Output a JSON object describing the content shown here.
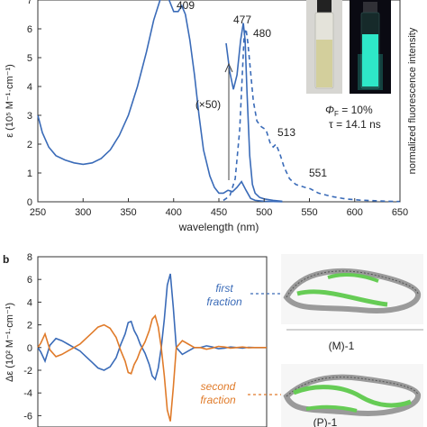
{
  "panel_a": {
    "letter": "",
    "peaks": [
      "409",
      "477",
      "480",
      "513",
      "551"
    ],
    "multiplier": "(×50)",
    "quantum_yield_sym": "Φ",
    "quantum_yield_sub": "F",
    "quantum_yield_val": " = 10%",
    "lifetime": "τ = 14.1 ns"
  },
  "panel_b": {
    "letter": "b",
    "first_fraction": [
      "first",
      "fraction"
    ],
    "second_fraction": [
      "second",
      "fraction"
    ],
    "enantiomer_M": "(M)-1",
    "enantiomer_P": "(P)-1"
  },
  "colors": {
    "blue": "#3a6bb8",
    "orange": "#e07b2a",
    "molecule_green": "#66cc55",
    "molecule_grey": "#9a9a9a"
  },
  "chart_data": [
    {
      "type": "line",
      "xlabel": "wavelength (nm)",
      "ylabel": "ε (10⁵ M⁻¹·cm⁻¹)",
      "y2label": "normalized fluorescence intensity",
      "xlim": [
        250,
        650
      ],
      "ylim": [
        0,
        7
      ],
      "xticks": [
        250,
        300,
        350,
        400,
        450,
        500,
        550,
        600,
        650
      ],
      "yticks": [
        0,
        1,
        2,
        3,
        4,
        5,
        6,
        7
      ],
      "series": [
        {
          "style": "solid",
          "color": "#3a6bb8",
          "x": [
            250,
            255,
            262,
            270,
            280,
            290,
            300,
            310,
            320,
            330,
            340,
            350,
            360,
            370,
            378,
            385,
            390,
            395,
            400,
            405,
            409,
            413,
            418,
            423,
            428,
            433,
            440,
            445,
            450,
            455,
            460,
            465,
            470,
            475,
            480,
            485,
            490,
            500,
            510,
            520
          ],
          "y": [
            3.0,
            2.4,
            1.9,
            1.6,
            1.45,
            1.35,
            1.3,
            1.35,
            1.5,
            1.8,
            2.3,
            3.0,
            4.0,
            5.2,
            6.3,
            7.0,
            7.2,
            7.0,
            6.6,
            6.6,
            6.8,
            6.5,
            5.6,
            4.4,
            3.0,
            1.8,
            0.9,
            0.5,
            0.3,
            0.3,
            0.4,
            0.35,
            0.5,
            0.7,
            0.4,
            0.12,
            0.05,
            0.02,
            0.01,
            0.0
          ]
        },
        {
          "style": "solid",
          "color": "#3a6bb8",
          "note_label": "(×50)",
          "x": [
            458,
            462,
            466,
            470,
            474,
            477,
            479,
            481,
            484,
            487,
            490,
            495,
            500,
            510,
            520
          ],
          "y": [
            5.5,
            4.5,
            3.9,
            4.4,
            5.6,
            6.2,
            5.6,
            3.8,
            1.6,
            0.6,
            0.3,
            0.15,
            0.1,
            0.05,
            0.02
          ]
        },
        {
          "style": "dashed",
          "color": "#3a6bb8",
          "x": [
            455,
            462,
            468,
            473,
            476,
            478,
            480,
            482,
            485,
            488,
            492,
            497,
            502,
            507,
            510,
            513,
            517,
            522,
            528,
            535,
            545,
            551,
            560,
            575,
            590,
            605,
            620,
            635,
            650
          ],
          "y": [
            0.05,
            0.2,
            0.8,
            2.5,
            4.5,
            5.8,
            6.0,
            5.5,
            4.5,
            3.5,
            2.8,
            2.6,
            2.5,
            2.0,
            1.9,
            2.0,
            1.7,
            1.2,
            0.8,
            0.6,
            0.5,
            0.45,
            0.3,
            0.18,
            0.1,
            0.06,
            0.04,
            0.02,
            0.01
          ]
        }
      ]
    },
    {
      "type": "line",
      "ylabel": "Δε (10² M⁻¹·cm⁻¹)",
      "ylim": [
        -7,
        8
      ],
      "yticks": [
        8,
        6,
        4,
        2,
        0,
        -2,
        -4,
        -6
      ],
      "series": [
        {
          "name": "first fraction",
          "color": "#3a6bb8",
          "x": [
            250,
            255,
            262,
            270,
            280,
            290,
            300,
            310,
            320,
            330,
            340,
            350,
            360,
            370,
            380,
            388,
            395,
            400,
            405,
            410,
            415,
            420,
            428,
            435,
            440,
            445,
            450,
            455,
            460,
            465,
            470,
            475,
            480,
            490,
            500,
            510,
            520,
            530,
            540,
            550,
            560,
            570,
            580,
            590,
            600,
            610,
            620,
            630
          ],
          "y": [
            0,
            -0.4,
            -1.2,
            0.2,
            0.8,
            0.6,
            0.3,
            0,
            -0.3,
            -0.8,
            -1.3,
            -1.8,
            -2.0,
            -1.7,
            -0.9,
            0.3,
            1.2,
            2.2,
            2.3,
            1.5,
            1.0,
            0.3,
            -0.5,
            -1.5,
            -2.5,
            -2.8,
            -1.8,
            0,
            2.5,
            5.5,
            6.5,
            3.5,
            0,
            -0.6,
            -0.3,
            0,
            0,
            0.15,
            0.05,
            -0.1,
            -0.05,
            0.05,
            0,
            -0.05,
            0.02,
            0,
            0,
            0
          ]
        },
        {
          "name": "second fraction",
          "color": "#e07b2a",
          "x": [
            250,
            255,
            262,
            270,
            280,
            290,
            300,
            310,
            320,
            330,
            340,
            350,
            360,
            370,
            380,
            388,
            395,
            400,
            405,
            410,
            415,
            420,
            428,
            435,
            440,
            445,
            450,
            455,
            460,
            465,
            470,
            475,
            480,
            490,
            500,
            510,
            520,
            530,
            540,
            550,
            560,
            570,
            580,
            590,
            600,
            610,
            620,
            630
          ],
          "y": [
            0,
            0.4,
            1.2,
            -0.2,
            -0.8,
            -0.6,
            -0.3,
            0,
            0.3,
            0.8,
            1.3,
            1.8,
            2.0,
            1.7,
            0.9,
            -0.3,
            -1.2,
            -2.2,
            -2.3,
            -1.5,
            -1.0,
            -0.3,
            0.5,
            1.5,
            2.5,
            2.8,
            1.8,
            0,
            -2.5,
            -5.5,
            -6.5,
            -3.5,
            0,
            0.6,
            0.3,
            0,
            0,
            -0.15,
            -0.05,
            0.1,
            0.05,
            -0.05,
            0,
            0.05,
            -0.02,
            0,
            0,
            0
          ]
        }
      ]
    }
  ]
}
